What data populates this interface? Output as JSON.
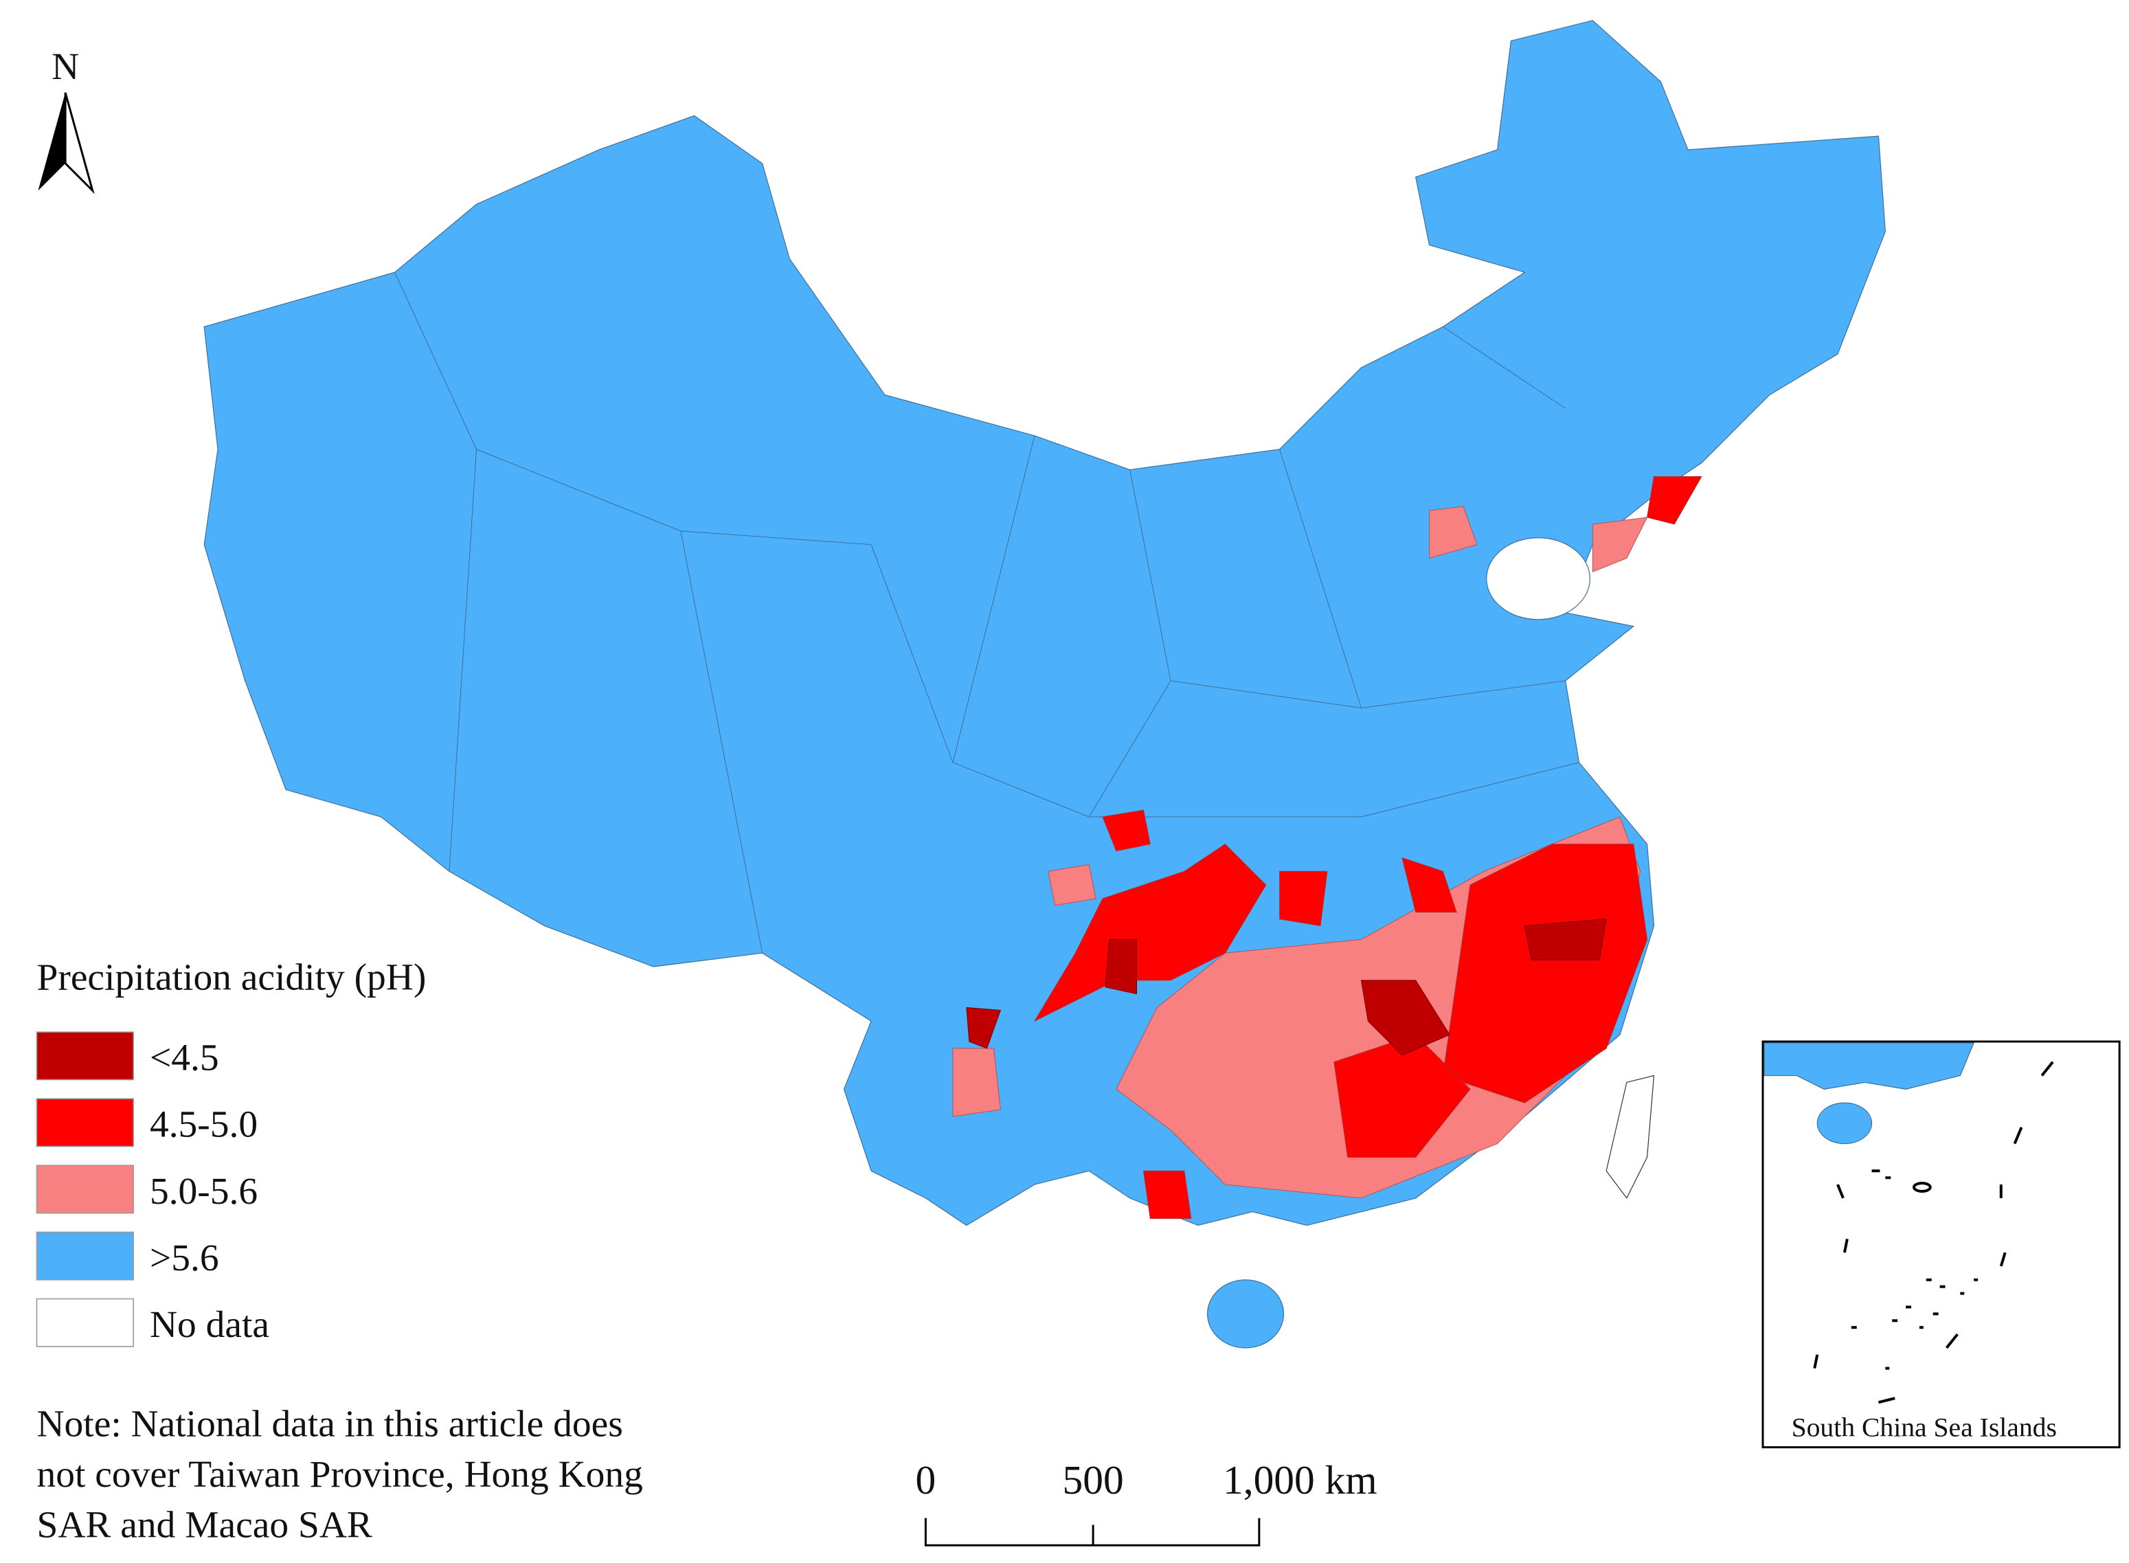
{
  "north_arrow": {
    "label": "N"
  },
  "legend": {
    "title": "Precipitation acidity (pH)",
    "items": [
      {
        "label": "<4.5",
        "color": "#c00000"
      },
      {
        "label": "4.5-5.0",
        "color": "#ff0000"
      },
      {
        "label": "5.0-5.6",
        "color": "#f88080"
      },
      {
        "label": ">5.6",
        "color": "#4db0fb"
      },
      {
        "label": "No data",
        "color": "#ffffff"
      }
    ]
  },
  "note": [
    "Note: National data in this article does",
    "not cover Taiwan Province, Hong Kong",
    "SAR and Macao SAR"
  ],
  "scale_bar": {
    "labels": [
      "0",
      "500",
      "1,000 km"
    ]
  },
  "inset": {
    "label": "South China Sea Islands"
  }
}
